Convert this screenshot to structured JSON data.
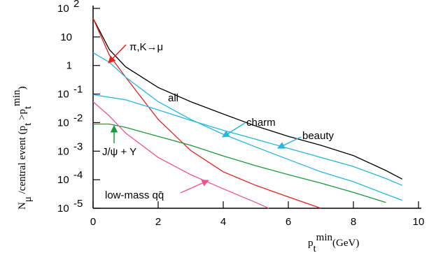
{
  "chart_data": {
    "type": "line",
    "log_y": true,
    "xlim": [
      0,
      10
    ],
    "xticks": [
      0,
      2,
      4,
      6,
      8,
      10
    ],
    "ylim": [
      1e-05,
      100
    ],
    "yticks": [
      {
        "value": 1e-05,
        "label": "10",
        "exponent": "-5"
      },
      {
        "value": 0.0001,
        "label": "10",
        "exponent": "-4"
      },
      {
        "value": 0.001,
        "label": "10",
        "exponent": "-3"
      },
      {
        "value": 0.01,
        "label": "10",
        "exponent": "-2"
      },
      {
        "value": 0.1,
        "label": "10",
        "exponent": "-1"
      },
      1,
      10,
      {
        "value": 100,
        "label": "10",
        "exponent": "2"
      }
    ],
    "xlabel_parts": [
      [
        "p",
        ""
      ],
      [
        "t",
        "sub"
      ],
      [
        "min",
        "sup"
      ],
      [
        "(GeV)",
        ""
      ]
    ],
    "ylabel_parts": [
      [
        "N",
        ""
      ],
      [
        "μ",
        "sub"
      ],
      [
        " /central event (p",
        ""
      ],
      [
        "t",
        "sub"
      ],
      [
        " >p",
        ""
      ],
      [
        "t",
        "sub"
      ],
      [
        "min",
        "sup"
      ],
      [
        ")",
        ""
      ]
    ],
    "series": [
      {
        "name": "all",
        "color": "#000000",
        "x": [
          0,
          0.5,
          1,
          2,
          3,
          4,
          5,
          6,
          7,
          8,
          9,
          9.5
        ],
        "values": [
          45,
          3.6,
          0.9,
          0.17,
          0.054,
          0.02,
          0.0076,
          0.0033,
          0.0016,
          0.0007,
          0.00021,
          0.000105
        ]
      },
      {
        "name": "π,K→μ",
        "color": "#e8201c",
        "x": [
          0,
          0.5,
          1,
          1.5,
          2,
          3,
          4,
          5,
          6,
          7
        ],
        "values": [
          45,
          2.3,
          0.39,
          0.071,
          0.013,
          0.00105,
          0.00019,
          6.3e-05,
          2.5e-05,
          1e-05
        ]
      },
      {
        "name": "charm",
        "color": "#26b6e0",
        "x": [
          0,
          0.5,
          1,
          2,
          3,
          4,
          5,
          6,
          7,
          8,
          9,
          9.5
        ],
        "values": [
          2.8,
          1.3,
          0.39,
          0.054,
          0.013,
          0.0039,
          0.0014,
          0.00051,
          0.00019,
          8.5e-05,
          3.1e-05,
          1.9e-05
        ]
      },
      {
        "name": "beauty",
        "color": "#26b6e0",
        "x": [
          0,
          1,
          2,
          3,
          4,
          5,
          6,
          7,
          8,
          9,
          9.5
        ],
        "values": [
          0.095,
          0.063,
          0.028,
          0.012,
          0.0054,
          0.0026,
          0.00125,
          0.0006,
          0.00029,
          0.00011,
          6.3e-05
        ]
      },
      {
        "name": "J/ψ + Υ",
        "color": "#1a9a3a",
        "x": [
          0,
          0.5,
          1,
          2,
          3,
          4,
          5,
          6,
          7,
          8,
          9
        ],
        "values": [
          0.0089,
          0.0089,
          0.0068,
          0.0033,
          0.0016,
          0.00068,
          0.00031,
          0.00015,
          7.6e-05,
          3.6e-05,
          1.6e-05
        ]
      },
      {
        "name": "low-mass qq̄",
        "color": "#e8559a",
        "x": [
          0,
          0.5,
          1,
          2,
          3,
          4,
          5,
          5.4
        ],
        "values": [
          0.054,
          0.017,
          0.0043,
          0.0006,
          0.00015,
          4.8e-05,
          1.6e-05,
          1e-05
        ]
      }
    ]
  }
}
